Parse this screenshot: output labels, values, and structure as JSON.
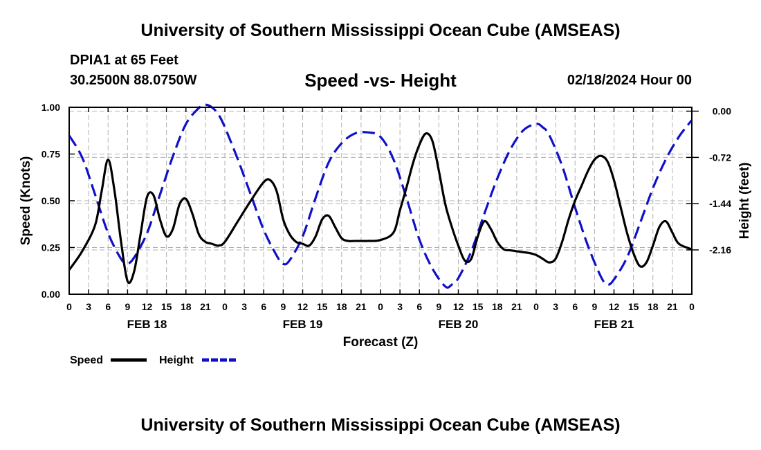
{
  "header": {
    "title": "University of Southern Mississippi Ocean Cube (AMSEAS)",
    "station": "DPIA1 at 65 Feet",
    "coords": "30.2500N  88.0750W",
    "subtitle": "Speed -vs- Height",
    "datetime": "02/18/2024 Hour 00"
  },
  "footer": {
    "title": "University of Southern Mississippi Ocean Cube (AMSEAS)"
  },
  "chart_data": {
    "type": "line",
    "xlabel": "Forecast (Z)",
    "ylabel_left": "Speed (Knots)",
    "ylabel_right": "Height (feet)",
    "x_range_hours": [
      0,
      96
    ],
    "x_tick_step_hours": 3,
    "x_tick_labels": [
      "0",
      "3",
      "6",
      "9",
      "12",
      "15",
      "18",
      "21",
      "0",
      "3",
      "6",
      "9",
      "12",
      "15",
      "18",
      "21",
      "0",
      "3",
      "6",
      "9",
      "12",
      "15",
      "18",
      "21",
      "0",
      "3",
      "6",
      "9",
      "12",
      "15",
      "18",
      "21",
      "0"
    ],
    "day_labels": [
      {
        "label": "FEB 18",
        "hour": 12
      },
      {
        "label": "FEB 19",
        "hour": 36
      },
      {
        "label": "FEB 20",
        "hour": 60
      },
      {
        "label": "FEB 21",
        "hour": 84
      }
    ],
    "ylim_left": [
      0,
      1.0
    ],
    "yticks_left": [
      "0.00",
      "0.25",
      "0.50",
      "0.75",
      "1.00"
    ],
    "ylim_right": [
      -2.85,
      0.06
    ],
    "yticks_right": [
      "0.00",
      "-0.72",
      "-1.44",
      "-2.16"
    ],
    "grid": true,
    "colors": {
      "speed": "#000000",
      "height": "#1010c8",
      "grid": "#b0b0b0"
    },
    "legend": [
      {
        "name": "Speed",
        "color": "#000000",
        "style": "solid"
      },
      {
        "name": "Height",
        "color": "#1010c8",
        "style": "dashed"
      }
    ],
    "series": [
      {
        "name": "Speed",
        "axis": "left",
        "x": [
          0,
          2,
          4,
          5,
          6,
          7,
          8,
          9,
          10,
          11,
          12,
          13,
          14,
          15,
          16,
          17,
          18,
          19,
          20,
          21,
          22,
          23,
          24,
          26,
          28,
          30,
          31,
          32,
          33,
          34,
          35,
          36,
          37,
          38,
          39,
          40,
          41,
          42,
          43,
          44,
          45,
          46,
          48,
          50,
          51,
          52,
          53,
          54,
          55,
          56,
          57,
          58,
          59,
          60,
          61,
          62,
          63,
          64,
          65,
          66,
          67,
          68,
          69,
          70,
          71,
          72,
          73,
          74,
          75,
          76,
          77,
          78,
          79,
          80,
          81,
          82,
          83,
          84,
          85,
          86,
          87,
          88,
          89,
          90,
          91,
          92,
          93,
          94,
          96
        ],
        "values": [
          0.13,
          0.23,
          0.37,
          0.55,
          0.72,
          0.55,
          0.28,
          0.07,
          0.12,
          0.32,
          0.52,
          0.53,
          0.4,
          0.31,
          0.35,
          0.48,
          0.51,
          0.43,
          0.32,
          0.28,
          0.27,
          0.26,
          0.28,
          0.39,
          0.5,
          0.6,
          0.61,
          0.55,
          0.4,
          0.32,
          0.28,
          0.27,
          0.26,
          0.31,
          0.4,
          0.42,
          0.36,
          0.3,
          0.285,
          0.285,
          0.285,
          0.285,
          0.29,
          0.33,
          0.45,
          0.57,
          0.7,
          0.8,
          0.86,
          0.82,
          0.66,
          0.48,
          0.36,
          0.26,
          0.18,
          0.19,
          0.31,
          0.39,
          0.35,
          0.28,
          0.24,
          0.235,
          0.23,
          0.225,
          0.22,
          0.21,
          0.19,
          0.17,
          0.19,
          0.28,
          0.4,
          0.5,
          0.58,
          0.66,
          0.72,
          0.74,
          0.71,
          0.61,
          0.47,
          0.33,
          0.22,
          0.15,
          0.17,
          0.26,
          0.36,
          0.39,
          0.33,
          0.27,
          0.24
        ]
      },
      {
        "name": "Height",
        "axis": "right",
        "x": [
          0,
          2,
          4,
          6,
          8,
          9,
          10,
          12,
          14,
          16,
          18,
          20,
          21,
          22,
          23,
          24,
          26,
          28,
          30,
          32,
          33,
          34,
          36,
          38,
          40,
          42,
          44,
          46,
          48,
          50,
          52,
          54,
          56,
          58,
          59,
          60,
          62,
          64,
          66,
          68,
          70,
          72,
          73,
          74,
          76,
          78,
          80,
          82,
          83,
          84,
          86,
          88,
          90,
          92,
          94,
          96
        ],
        "values": [
          -0.38,
          -0.72,
          -1.3,
          -1.9,
          -2.3,
          -2.37,
          -2.28,
          -1.9,
          -1.3,
          -0.7,
          -0.2,
          0.05,
          0.1,
          0.06,
          -0.05,
          -0.25,
          -0.75,
          -1.3,
          -1.85,
          -2.25,
          -2.38,
          -2.32,
          -1.95,
          -1.35,
          -0.8,
          -0.5,
          -0.35,
          -0.33,
          -0.4,
          -0.75,
          -1.35,
          -2.0,
          -2.45,
          -2.73,
          -2.7,
          -2.6,
          -2.18,
          -1.6,
          -1.05,
          -0.6,
          -0.3,
          -0.2,
          -0.25,
          -0.37,
          -0.85,
          -1.5,
          -2.1,
          -2.58,
          -2.7,
          -2.62,
          -2.28,
          -1.75,
          -1.2,
          -0.75,
          -0.4,
          -0.14
        ]
      }
    ]
  }
}
